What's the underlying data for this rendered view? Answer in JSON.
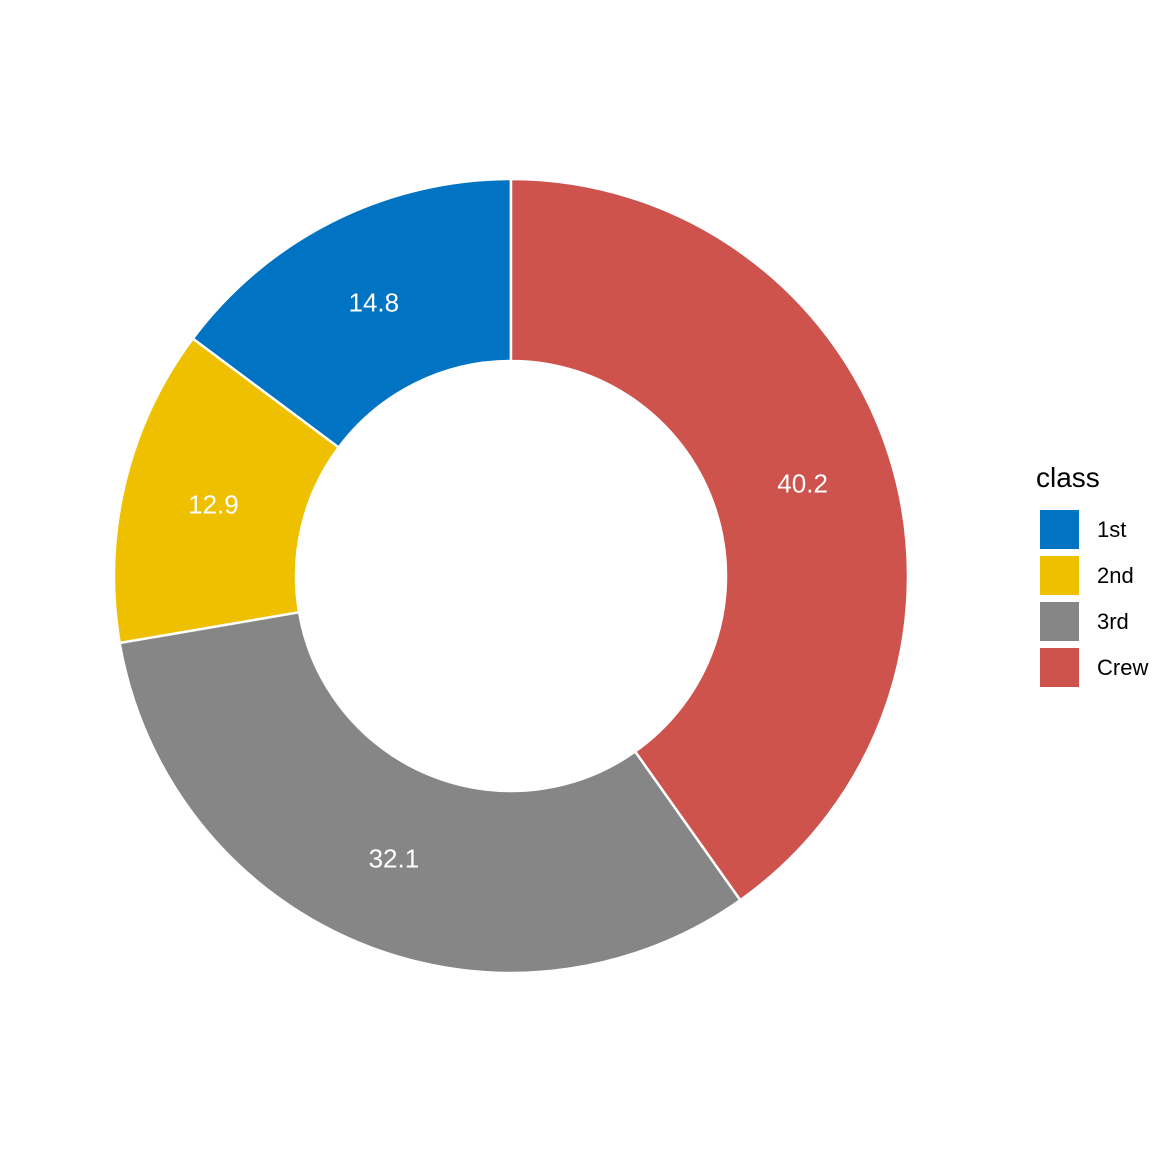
{
  "chart_data": {
    "type": "pie",
    "variant": "donut",
    "categories": [
      "1st",
      "2nd",
      "3rd",
      "Crew"
    ],
    "values": [
      14.8,
      12.9,
      32.1,
      40.2
    ],
    "colors": [
      "#0073C2",
      "#EFC000",
      "#868686",
      "#CD534C"
    ],
    "labels": [
      "14.8",
      "12.9",
      "32.1",
      "40.2"
    ],
    "legend": {
      "title": "class",
      "position": "right"
    },
    "direction": "counter-clockwise from top",
    "slice_border_color": "#ffffff"
  }
}
